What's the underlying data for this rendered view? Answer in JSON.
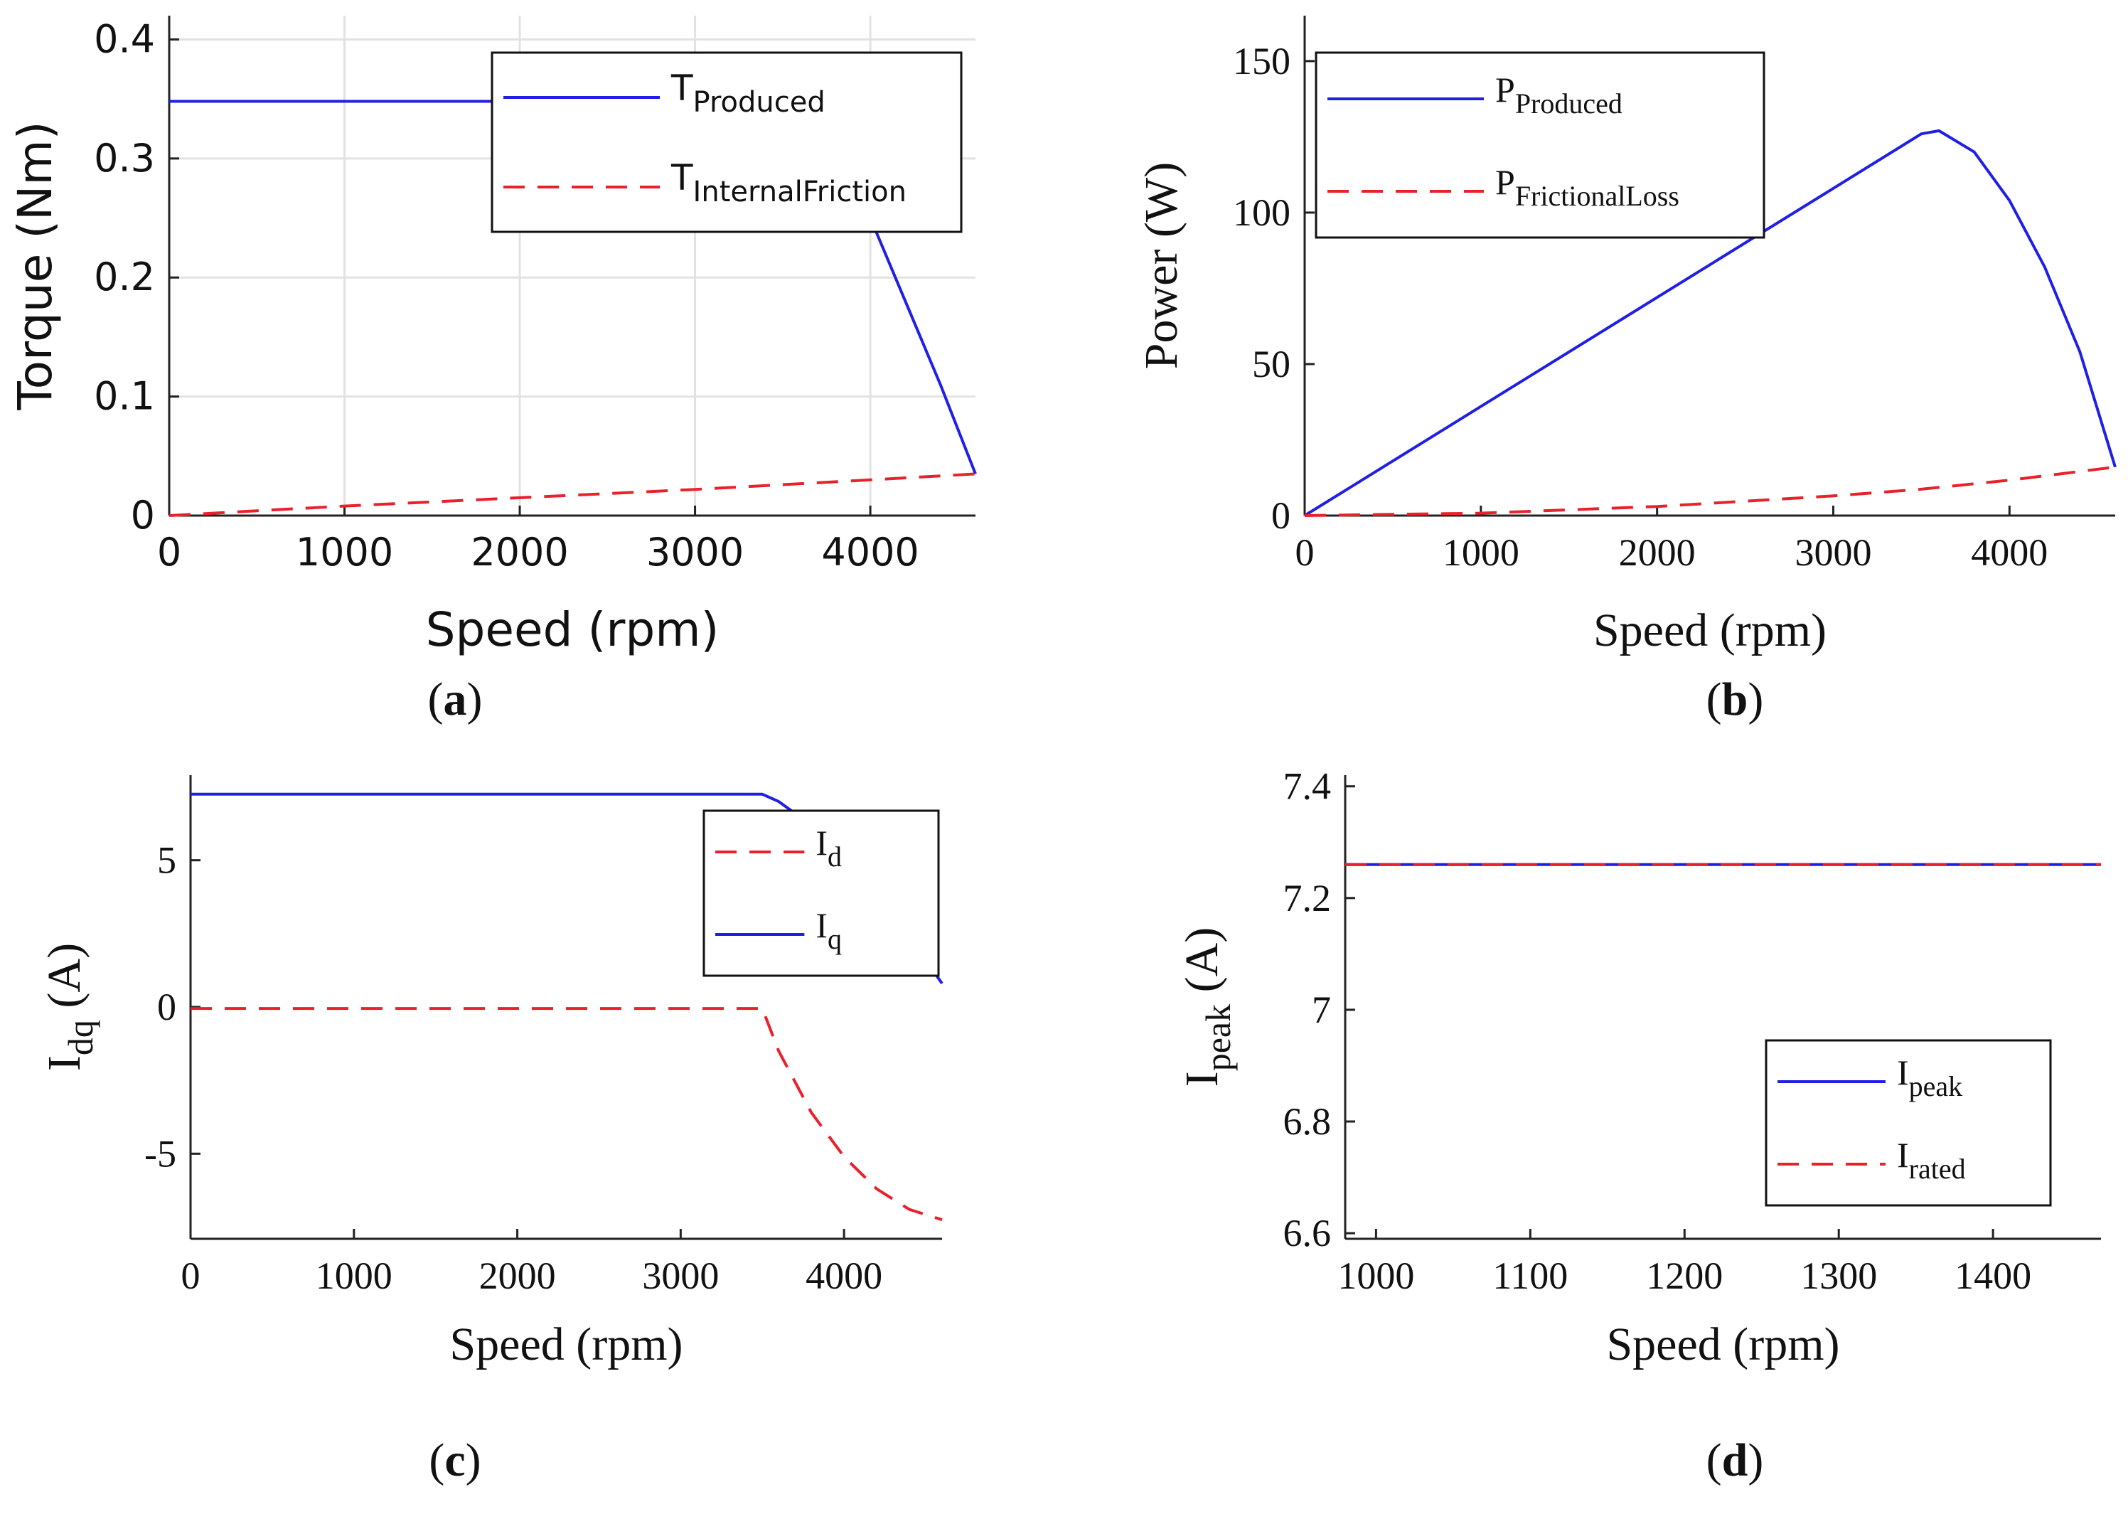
{
  "colors": {
    "blue": "#1f1fe6",
    "red": "#e8212b",
    "grid": "#e2e2e2",
    "axis": "#222222"
  },
  "chart_data": [
    {
      "id": "a",
      "type": "line",
      "caption": {
        "open": "(",
        "letter": "a",
        "close": ")"
      },
      "xlabel": "Speed (rpm)",
      "ylabel": "Torque (Nm)",
      "xlim": [
        0,
        4600
      ],
      "ylim": [
        0,
        0.42
      ],
      "xticks": [
        0,
        1000,
        2000,
        3000,
        4000
      ],
      "yticks": [
        0,
        0.1,
        0.2,
        0.3,
        0.4
      ],
      "ytick_labels": [
        "0",
        "0.1",
        "0.2",
        "0.3",
        "0.4"
      ],
      "grid": true,
      "legend_position": "top-right",
      "series": [
        {
          "main": "T",
          "sub": "Produced",
          "color": "#1f1fe6",
          "dash": "solid",
          "points": [
            [
              0,
              0.348
            ],
            [
              3500,
              0.348
            ],
            [
              3600,
              0.34
            ],
            [
              3800,
              0.32
            ],
            [
              4000,
              0.25
            ],
            [
              4200,
              0.18
            ],
            [
              4400,
              0.11
            ],
            [
              4600,
              0.035
            ]
          ]
        },
        {
          "main": "T",
          "sub": "InternalFriction",
          "color": "#e8212b",
          "dash": "dashed",
          "points": [
            [
              0,
              0
            ],
            [
              1000,
              0.008
            ],
            [
              2000,
              0.015
            ],
            [
              3000,
              0.022
            ],
            [
              4000,
              0.03
            ],
            [
              4600,
              0.035
            ]
          ]
        }
      ]
    },
    {
      "id": "b",
      "type": "line",
      "caption": {
        "open": "(",
        "letter": "b",
        "close": ")"
      },
      "xlabel": "Speed (rpm)",
      "ylabel": "Power (W)",
      "xlim": [
        0,
        4600
      ],
      "ylim": [
        0,
        165
      ],
      "xticks": [
        0,
        1000,
        2000,
        3000,
        4000
      ],
      "yticks": [
        0,
        50,
        100,
        150
      ],
      "ytick_labels": [
        "0",
        "50",
        "100",
        "150"
      ],
      "grid": false,
      "legend_position": "top-left",
      "series": [
        {
          "main": "P",
          "sub": "Produced",
          "color": "#1f1fe6",
          "dash": "solid",
          "points": [
            [
              0,
              0
            ],
            [
              1000,
              36
            ],
            [
              2000,
              72
            ],
            [
              3000,
              108
            ],
            [
              3500,
              126
            ],
            [
              3600,
              127
            ],
            [
              3800,
              120
            ],
            [
              4000,
              104
            ],
            [
              4200,
              82
            ],
            [
              4400,
              54
            ],
            [
              4600,
              16
            ]
          ]
        },
        {
          "main": "P",
          "sub": "FrictionalLoss",
          "color": "#e8212b",
          "dash": "dashed",
          "points": [
            [
              0,
              0
            ],
            [
              1000,
              0.8
            ],
            [
              2000,
              3
            ],
            [
              3000,
              6.5
            ],
            [
              3500,
              8.7
            ],
            [
              4000,
              11.7
            ],
            [
              4600,
              16
            ]
          ]
        }
      ]
    },
    {
      "id": "c",
      "type": "line",
      "caption": {
        "open": "(",
        "letter": "c",
        "close": ")"
      },
      "xlabel": "Speed (rpm)",
      "ylabel_main": "I",
      "ylabel_sub": "dq",
      "ylabel_rest": " (A)",
      "xlim": [
        0,
        4600
      ],
      "ylim": [
        -7.9,
        7.9
      ],
      "xticks": [
        0,
        1000,
        2000,
        3000,
        4000
      ],
      "yticks": [
        -5,
        0,
        5
      ],
      "ytick_labels": [
        "-5",
        "0",
        "5"
      ],
      "grid": false,
      "legend_position": "top-right",
      "series": [
        {
          "main": "I",
          "sub": "d",
          "color": "#e8212b",
          "dash": "dashed",
          "points": [
            [
              0,
              -0.05
            ],
            [
              3500,
              -0.05
            ],
            [
              3600,
              -1.5
            ],
            [
              3800,
              -3.6
            ],
            [
              4000,
              -5.1
            ],
            [
              4200,
              -6.2
            ],
            [
              4400,
              -6.9
            ],
            [
              4600,
              -7.25
            ]
          ]
        },
        {
          "main": "I",
          "sub": "q",
          "color": "#1f1fe6",
          "dash": "solid",
          "points": [
            [
              0,
              7.25
            ],
            [
              3500,
              7.25
            ],
            [
              3600,
              7.0
            ],
            [
              3800,
              6.2
            ],
            [
              4000,
              5.1
            ],
            [
              4200,
              3.9
            ],
            [
              4400,
              2.4
            ],
            [
              4600,
              0.8
            ]
          ]
        }
      ]
    },
    {
      "id": "d",
      "type": "line",
      "caption": {
        "open": "(",
        "letter": "d",
        "close": ")"
      },
      "xlabel": "Speed (rpm)",
      "ylabel_main": "I",
      "ylabel_sub": "peak",
      "ylabel_rest": " (A)",
      "xlim": [
        980,
        1470
      ],
      "ylim": [
        6.59,
        7.42
      ],
      "xticks": [
        1000,
        1100,
        1200,
        1300,
        1400
      ],
      "yticks": [
        6.6,
        6.8,
        7.0,
        7.2,
        7.4
      ],
      "ytick_labels": [
        "6.6",
        "6.8",
        "7",
        "7.2",
        "7.4"
      ],
      "grid": false,
      "legend_position": "bottom-right",
      "series": [
        {
          "main": "I",
          "sub": "peak",
          "color": "#1f1fe6",
          "dash": "solid",
          "points": [
            [
              980,
              7.26
            ],
            [
              1470,
              7.26
            ]
          ]
        },
        {
          "main": "I",
          "sub": "rated",
          "color": "#e8212b",
          "dash": "dashed",
          "points": [
            [
              980,
              7.26
            ],
            [
              1470,
              7.26
            ]
          ]
        }
      ]
    }
  ]
}
